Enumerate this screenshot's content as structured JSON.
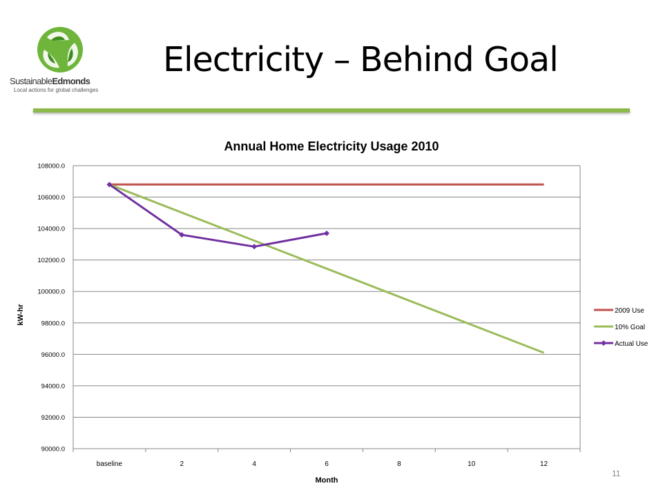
{
  "slide": {
    "title": "Electricity – Behind Goal",
    "number": "11"
  },
  "logo": {
    "name_part1": "Sustainable",
    "name_part2": "Edmonds",
    "tagline": "Local actions for global challenges"
  },
  "colors": {
    "rule": "#8db94a",
    "series_2009": "#c0504d",
    "series_goal": "#9bbb59",
    "series_actual": "#7030a0"
  },
  "chart_data": {
    "type": "line",
    "title": "Annual Home Electricity Usage 2010",
    "xlabel": "Month",
    "ylabel": "kW-hr",
    "categories": [
      "baseline",
      "2",
      "4",
      "6",
      "8",
      "10",
      "12"
    ],
    "ylim": [
      90000,
      108000
    ],
    "yticks": [
      "90000.0",
      "92000.0",
      "94000.0",
      "96000.0",
      "98000.0",
      "100000.0",
      "102000.0",
      "104000.0",
      "106000.0",
      "108000.0"
    ],
    "grid": true,
    "legend_position": "right",
    "series": [
      {
        "name": "2009 Use",
        "x": [
          "baseline",
          "12"
        ],
        "values": [
          106800,
          106800
        ],
        "markers": false
      },
      {
        "name": "10% Goal",
        "x": [
          "baseline",
          "12"
        ],
        "values": [
          106800,
          96100
        ],
        "markers": false
      },
      {
        "name": "Actual Use",
        "x": [
          "baseline",
          "2",
          "4",
          "6"
        ],
        "values": [
          106800,
          103600,
          102850,
          103700
        ],
        "markers": true
      }
    ]
  }
}
